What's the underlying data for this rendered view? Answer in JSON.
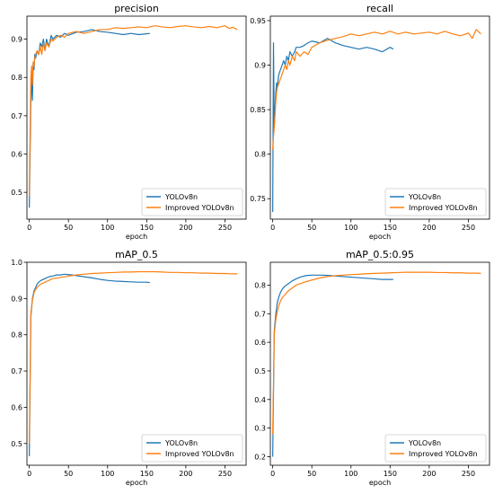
{
  "colors": {
    "yolo": "#1f77b4",
    "improved": "#ff7f0e"
  },
  "chart_data": [
    {
      "type": "line",
      "title": "precision",
      "xlabel": "epoch",
      "ylabel": "",
      "xlim": [
        -3,
        277
      ],
      "ylim": [
        0.43,
        0.96
      ],
      "xticks": [
        0,
        50,
        100,
        150,
        200,
        250
      ],
      "yticks": [
        0.5,
        0.6,
        0.7,
        0.8,
        0.9
      ],
      "legend_position": "lower-right",
      "series": [
        {
          "name": "YOLOv8n",
          "color": "#1f77b4",
          "x": [
            0,
            2,
            3,
            4,
            5,
            6,
            7,
            8,
            10,
            12,
            14,
            16,
            18,
            20,
            22,
            25,
            28,
            30,
            35,
            40,
            45,
            50,
            60,
            70,
            80,
            90,
            100,
            110,
            120,
            130,
            140,
            150,
            154
          ],
          "y": [
            0.46,
            0.74,
            0.8,
            0.74,
            0.84,
            0.82,
            0.86,
            0.85,
            0.87,
            0.86,
            0.89,
            0.88,
            0.9,
            0.87,
            0.9,
            0.88,
            0.91,
            0.9,
            0.91,
            0.905,
            0.915,
            0.91,
            0.918,
            0.92,
            0.925,
            0.92,
            0.918,
            0.915,
            0.912,
            0.915,
            0.912,
            0.914,
            0.915
          ]
        },
        {
          "name": "Improved YOLOv8n",
          "color": "#ff7f0e",
          "x": [
            0,
            2,
            3,
            4,
            5,
            6,
            7,
            8,
            10,
            12,
            14,
            16,
            18,
            20,
            22,
            25,
            28,
            30,
            35,
            40,
            45,
            50,
            60,
            70,
            80,
            90,
            100,
            110,
            120,
            130,
            140,
            150,
            160,
            170,
            180,
            190,
            200,
            210,
            220,
            230,
            240,
            250,
            255,
            260,
            266
          ],
          "y": [
            0.49,
            0.8,
            0.83,
            0.78,
            0.84,
            0.83,
            0.85,
            0.86,
            0.87,
            0.86,
            0.88,
            0.86,
            0.89,
            0.87,
            0.89,
            0.88,
            0.9,
            0.895,
            0.905,
            0.91,
            0.905,
            0.915,
            0.92,
            0.915,
            0.92,
            0.925,
            0.925,
            0.93,
            0.928,
            0.93,
            0.932,
            0.93,
            0.935,
            0.932,
            0.93,
            0.933,
            0.935,
            0.932,
            0.93,
            0.933,
            0.93,
            0.935,
            0.928,
            0.931,
            0.925
          ]
        }
      ]
    },
    {
      "type": "line",
      "title": "recall",
      "xlabel": "epoch",
      "ylabel": "",
      "xlim": [
        -3,
        277
      ],
      "ylim": [
        0.727,
        0.955
      ],
      "xticks": [
        0,
        50,
        100,
        150,
        200,
        250
      ],
      "yticks": [
        0.75,
        0.8,
        0.85,
        0.9,
        0.95
      ],
      "legend_position": "lower-right",
      "series": [
        {
          "name": "YOLOv8n",
          "color": "#1f77b4",
          "x": [
            0,
            1,
            2,
            3,
            4,
            5,
            6,
            7,
            8,
            10,
            12,
            14,
            16,
            18,
            20,
            22,
            25,
            28,
            30,
            35,
            40,
            45,
            50,
            60,
            70,
            80,
            90,
            100,
            110,
            120,
            130,
            140,
            150,
            154
          ],
          "y": [
            0.735,
            0.925,
            0.83,
            0.85,
            0.87,
            0.88,
            0.875,
            0.885,
            0.89,
            0.895,
            0.9,
            0.905,
            0.9,
            0.91,
            0.905,
            0.915,
            0.91,
            0.915,
            0.92,
            0.92,
            0.922,
            0.925,
            0.927,
            0.925,
            0.93,
            0.925,
            0.922,
            0.92,
            0.918,
            0.92,
            0.918,
            0.915,
            0.92,
            0.918
          ]
        },
        {
          "name": "Improved YOLOv8n",
          "color": "#ff7f0e",
          "x": [
            0,
            1,
            2,
            3,
            4,
            5,
            6,
            8,
            10,
            12,
            14,
            16,
            18,
            20,
            22,
            25,
            28,
            30,
            35,
            40,
            45,
            50,
            60,
            70,
            80,
            90,
            100,
            110,
            120,
            130,
            140,
            150,
            160,
            170,
            180,
            190,
            200,
            210,
            220,
            230,
            240,
            250,
            255,
            260,
            266
          ],
          "y": [
            0.805,
            0.82,
            0.83,
            0.845,
            0.86,
            0.87,
            0.875,
            0.88,
            0.885,
            0.89,
            0.895,
            0.9,
            0.895,
            0.905,
            0.9,
            0.91,
            0.905,
            0.915,
            0.91,
            0.915,
            0.912,
            0.92,
            0.925,
            0.928,
            0.93,
            0.932,
            0.935,
            0.933,
            0.935,
            0.937,
            0.935,
            0.938,
            0.935,
            0.937,
            0.935,
            0.936,
            0.937,
            0.935,
            0.938,
            0.935,
            0.933,
            0.936,
            0.93,
            0.94,
            0.935
          ]
        }
      ]
    },
    {
      "type": "line",
      "title": "mAP_0.5",
      "xlabel": "epoch",
      "ylabel": "",
      "xlim": [
        -3,
        277
      ],
      "ylim": [
        0.44,
        1.0
      ],
      "xticks": [
        0,
        50,
        100,
        150,
        200,
        250
      ],
      "yticks": [
        0.5,
        0.6,
        0.7,
        0.8,
        0.9,
        1.0
      ],
      "legend_position": "lower-right",
      "series": [
        {
          "name": "YOLOv8n",
          "color": "#1f77b4",
          "x": [
            0,
            2,
            4,
            6,
            8,
            10,
            12,
            15,
            20,
            25,
            30,
            35,
            40,
            45,
            50,
            55,
            60,
            70,
            80,
            90,
            100,
            110,
            120,
            130,
            140,
            150,
            154
          ],
          "y": [
            0.465,
            0.85,
            0.9,
            0.92,
            0.93,
            0.94,
            0.945,
            0.95,
            0.955,
            0.96,
            0.962,
            0.965,
            0.965,
            0.967,
            0.966,
            0.965,
            0.963,
            0.96,
            0.957,
            0.953,
            0.95,
            0.948,
            0.947,
            0.946,
            0.945,
            0.945,
            0.944
          ]
        },
        {
          "name": "Improved YOLOv8n",
          "color": "#ff7f0e",
          "x": [
            0,
            2,
            4,
            6,
            8,
            10,
            12,
            15,
            20,
            25,
            30,
            40,
            50,
            60,
            70,
            80,
            90,
            100,
            110,
            120,
            130,
            140,
            150,
            160,
            170,
            180,
            190,
            200,
            210,
            220,
            230,
            240,
            250,
            260,
            266
          ],
          "y": [
            0.5,
            0.86,
            0.895,
            0.915,
            0.925,
            0.93,
            0.935,
            0.94,
            0.945,
            0.95,
            0.955,
            0.958,
            0.962,
            0.965,
            0.967,
            0.969,
            0.97,
            0.971,
            0.972,
            0.973,
            0.973,
            0.974,
            0.974,
            0.974,
            0.973,
            0.972,
            0.972,
            0.971,
            0.971,
            0.97,
            0.97,
            0.969,
            0.969,
            0.968,
            0.968
          ]
        }
      ]
    },
    {
      "type": "line",
      "title": "mAP_0.5:0.95",
      "xlabel": "epoch",
      "ylabel": "",
      "xlim": [
        -3,
        277
      ],
      "ylim": [
        0.17,
        0.88
      ],
      "xticks": [
        0,
        50,
        100,
        150,
        200,
        250
      ],
      "yticks": [
        0.2,
        0.3,
        0.4,
        0.5,
        0.6,
        0.7,
        0.8
      ],
      "legend_position": "lower-right",
      "series": [
        {
          "name": "YOLOv8n",
          "color": "#1f77b4",
          "x": [
            0,
            2,
            4,
            6,
            8,
            10,
            12,
            15,
            20,
            25,
            30,
            35,
            40,
            45,
            50,
            55,
            60,
            70,
            80,
            90,
            100,
            110,
            120,
            130,
            140,
            150,
            154
          ],
          "y": [
            0.2,
            0.64,
            0.7,
            0.74,
            0.76,
            0.775,
            0.785,
            0.795,
            0.805,
            0.815,
            0.822,
            0.828,
            0.832,
            0.834,
            0.835,
            0.835,
            0.835,
            0.834,
            0.832,
            0.83,
            0.828,
            0.826,
            0.824,
            0.822,
            0.82,
            0.82,
            0.82
          ]
        },
        {
          "name": "Improved YOLOv8n",
          "color": "#ff7f0e",
          "x": [
            0,
            2,
            4,
            6,
            8,
            10,
            12,
            15,
            20,
            25,
            30,
            40,
            50,
            60,
            70,
            80,
            90,
            100,
            110,
            120,
            130,
            140,
            150,
            160,
            170,
            180,
            190,
            200,
            210,
            220,
            230,
            240,
            250,
            260,
            266
          ],
          "y": [
            0.28,
            0.63,
            0.68,
            0.71,
            0.73,
            0.745,
            0.755,
            0.765,
            0.78,
            0.79,
            0.8,
            0.81,
            0.818,
            0.825,
            0.83,
            0.833,
            0.835,
            0.837,
            0.838,
            0.84,
            0.841,
            0.842,
            0.843,
            0.844,
            0.845,
            0.845,
            0.845,
            0.845,
            0.844,
            0.844,
            0.843,
            0.843,
            0.842,
            0.842,
            0.841
          ]
        }
      ]
    }
  ]
}
